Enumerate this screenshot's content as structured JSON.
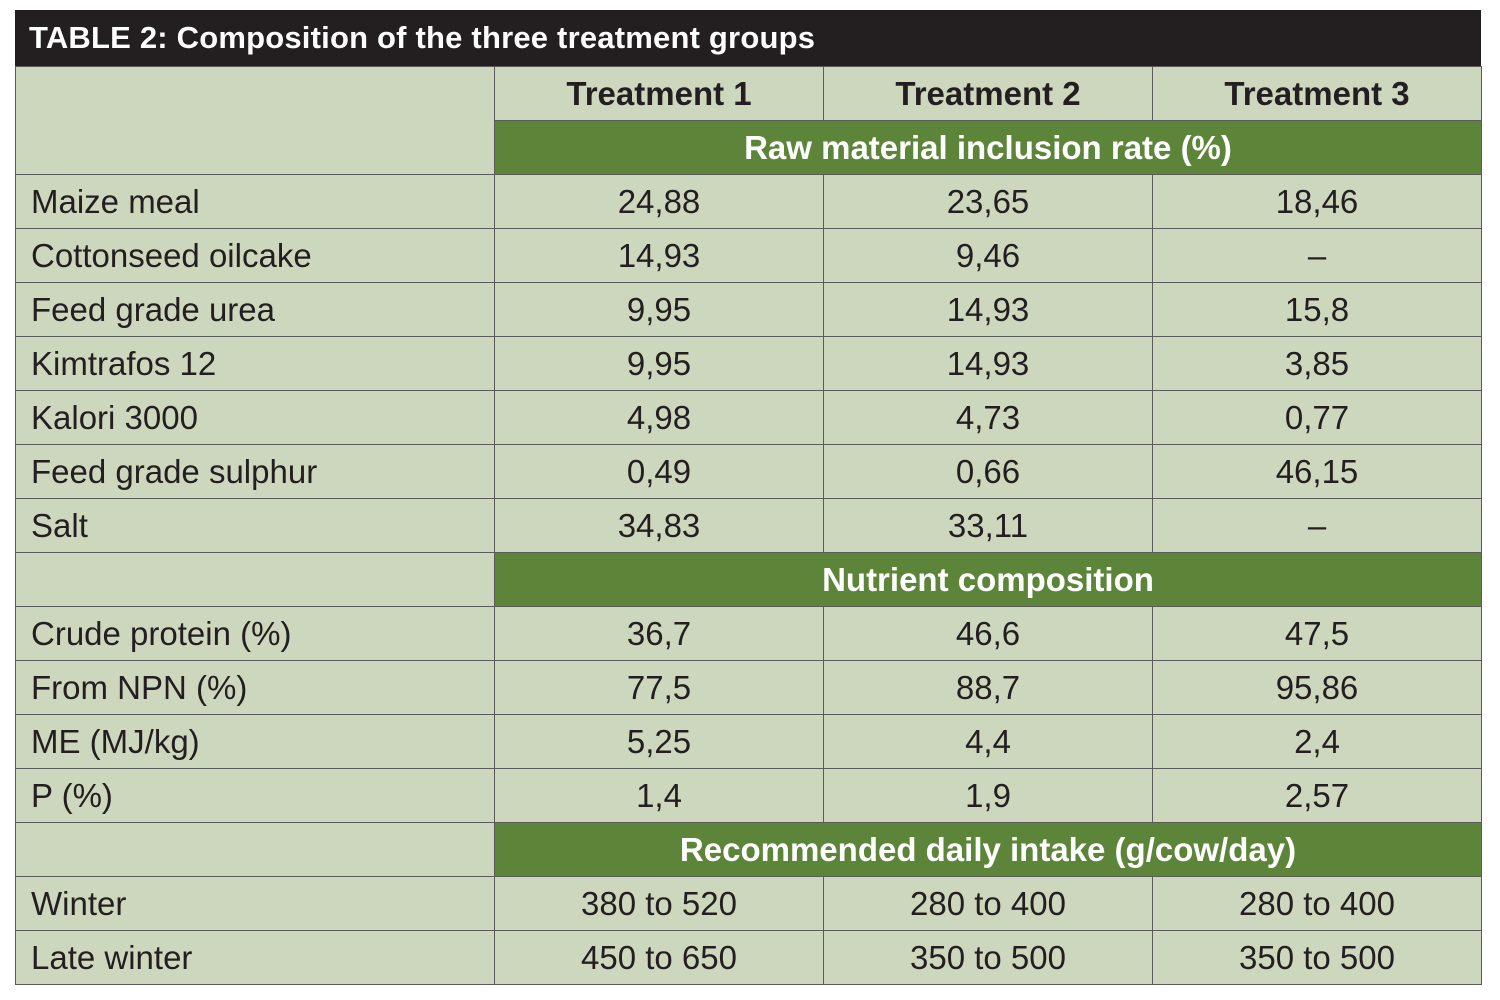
{
  "title": "TABLE 2: Composition of the three treatment groups",
  "columns": [
    "Treatment 1",
    "Treatment 2",
    "Treatment 3"
  ],
  "sections": [
    {
      "heading": "Raw material inclusion rate (%)",
      "rows": [
        {
          "label": "Maize meal",
          "values": [
            "24,88",
            "23,65",
            "18,46"
          ]
        },
        {
          "label": "Cottonseed oilcake",
          "values": [
            "14,93",
            "9,46",
            "–"
          ]
        },
        {
          "label": "Feed grade urea",
          "values": [
            "9,95",
            "14,93",
            "15,8"
          ]
        },
        {
          "label": "Kimtrafos 12",
          "values": [
            "9,95",
            "14,93",
            "3,85"
          ]
        },
        {
          "label": "Kalori 3000",
          "values": [
            "4,98",
            "4,73",
            "0,77"
          ]
        },
        {
          "label": "Feed grade sulphur",
          "values": [
            "0,49",
            "0,66",
            "46,15"
          ]
        },
        {
          "label": "Salt",
          "values": [
            "34,83",
            "33,11",
            "–"
          ]
        }
      ]
    },
    {
      "heading": "Nutrient composition",
      "rows": [
        {
          "label": "Crude protein (%)",
          "values": [
            "36,7",
            "46,6",
            "47,5"
          ]
        },
        {
          "label": "From NPN (%)",
          "values": [
            "77,5",
            "88,7",
            "95,86"
          ]
        },
        {
          "label": "ME (MJ/kg)",
          "values": [
            "5,25",
            "4,4",
            "2,4"
          ]
        },
        {
          "label": "P (%)",
          "values": [
            "1,4",
            "1,9",
            "2,57"
          ]
        }
      ]
    },
    {
      "heading": "Recommended daily intake (g/cow/day)",
      "rows": [
        {
          "label": "Winter",
          "values": [
            "380 to 520",
            "280 to 400",
            "280 to 400"
          ]
        },
        {
          "label": "Late winter",
          "values": [
            "450 to 650",
            "350 to 500",
            "350 to 500"
          ]
        }
      ]
    }
  ],
  "colors": {
    "title_bg": "#231f20",
    "section_bg": "#5d853a",
    "cell_bg": "#cdd7bd"
  }
}
